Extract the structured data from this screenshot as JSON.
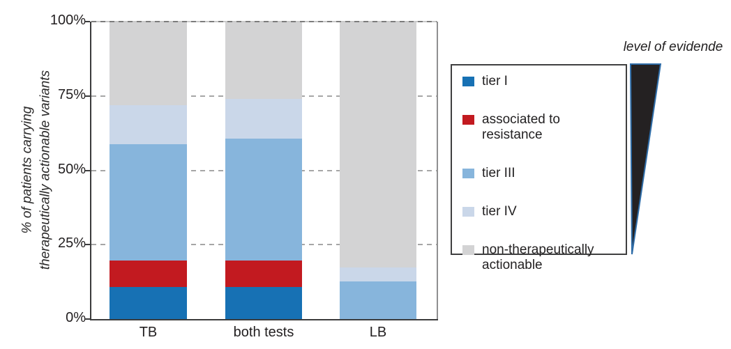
{
  "chart_data": {
    "type": "bar",
    "stacked": true,
    "categories": [
      "TB",
      "both tests",
      "LB"
    ],
    "series": [
      {
        "name": "tier I",
        "color": "#1771B4",
        "values": [
          10.7,
          10.7,
          0
        ]
      },
      {
        "name": "associated to resistance",
        "color": "#C21A20",
        "values": [
          9.0,
          9.0,
          0
        ]
      },
      {
        "name": "tier III",
        "color": "#87B5DC",
        "values": [
          39.2,
          41.0,
          12.6
        ]
      },
      {
        "name": "tier IV",
        "color": "#CAD7E9",
        "values": [
          13.1,
          13.3,
          4.7
        ]
      },
      {
        "name": "non-therapeutically actionable",
        "color": "#D3D3D4",
        "values": [
          28.0,
          26.0,
          82.7
        ]
      }
    ],
    "title": "",
    "xlabel": "",
    "ylabel_line1": "% of patients carrying",
    "ylabel_line2": "therapeutically actionable variants",
    "ylim": [
      0,
      100
    ],
    "yticks": [
      {
        "value": 0,
        "label": "0%"
      },
      {
        "value": 25,
        "label": "25%"
      },
      {
        "value": 50,
        "label": "50%"
      },
      {
        "value": 75,
        "label": "75%"
      },
      {
        "value": 100,
        "label": "100%"
      }
    ],
    "grid": "horizontal dashed at 25/50/75/100",
    "legend_position": "right of plot, boxed",
    "legend_labels": [
      "tier I",
      "associated to resistance",
      "tier III",
      "tier IV",
      "non-therapeutically actionable"
    ]
  },
  "annotation": {
    "evidence_label": "level of evidende",
    "wedge_fill": "#242122",
    "wedge_outline": "#2F6DA8"
  },
  "colors": {
    "axis_dark": "#3b3b3c",
    "axis_right_gray": "#8f8f90",
    "gridline": "#a6a6a6",
    "text": "#232122",
    "background": "#ffffff"
  }
}
